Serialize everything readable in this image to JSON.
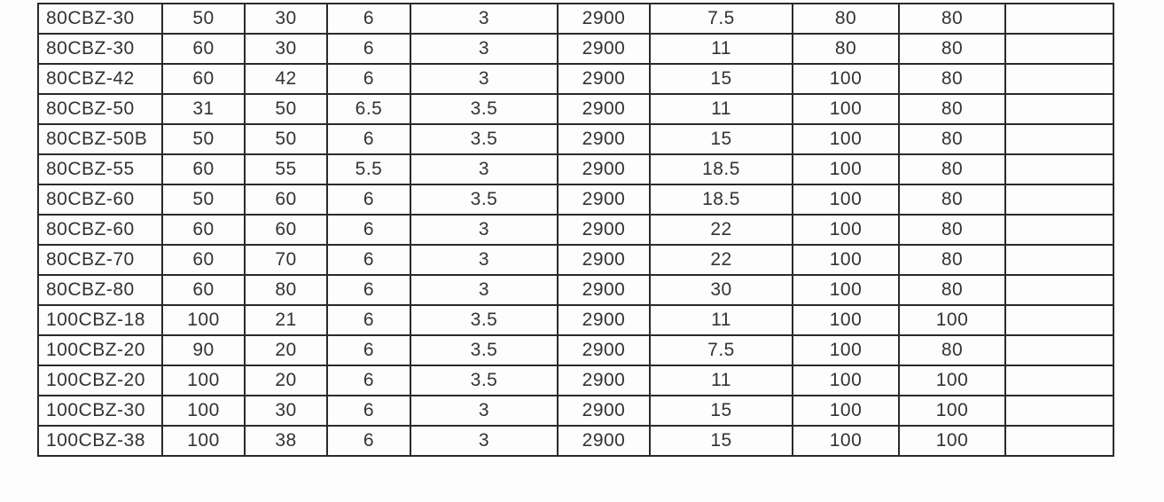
{
  "table": {
    "rows": [
      [
        "80CBZ-30",
        "50",
        "30",
        "6",
        "3",
        "2900",
        "7.5",
        "80",
        "80",
        ""
      ],
      [
        "80CBZ-30",
        "60",
        "30",
        "6",
        "3",
        "2900",
        "11",
        "80",
        "80",
        ""
      ],
      [
        "80CBZ-42",
        "60",
        "42",
        "6",
        "3",
        "2900",
        "15",
        "100",
        "80",
        ""
      ],
      [
        "80CBZ-50",
        "31",
        "50",
        "6.5",
        "3.5",
        "2900",
        "11",
        "100",
        "80",
        ""
      ],
      [
        "80CBZ-50B",
        "50",
        "50",
        "6",
        "3.5",
        "2900",
        "15",
        "100",
        "80",
        ""
      ],
      [
        "80CBZ-55",
        "60",
        "55",
        "5.5",
        "3",
        "2900",
        "18.5",
        "100",
        "80",
        ""
      ],
      [
        "80CBZ-60",
        "50",
        "60",
        "6",
        "3.5",
        "2900",
        "18.5",
        "100",
        "80",
        ""
      ],
      [
        "80CBZ-60",
        "60",
        "60",
        "6",
        "3",
        "2900",
        "22",
        "100",
        "80",
        ""
      ],
      [
        "80CBZ-70",
        "60",
        "70",
        "6",
        "3",
        "2900",
        "22",
        "100",
        "80",
        ""
      ],
      [
        "80CBZ-80",
        "60",
        "80",
        "6",
        "3",
        "2900",
        "30",
        "100",
        "80",
        ""
      ],
      [
        "100CBZ-18",
        "100",
        "21",
        "6",
        "3.5",
        "2900",
        "11",
        "100",
        "100",
        ""
      ],
      [
        "100CBZ-20",
        "90",
        "20",
        "6",
        "3.5",
        "2900",
        "7.5",
        "100",
        "80",
        ""
      ],
      [
        "100CBZ-20",
        "100",
        "20",
        "6",
        "3.5",
        "2900",
        "11",
        "100",
        "100",
        ""
      ],
      [
        "100CBZ-30",
        "100",
        "30",
        "6",
        "3",
        "2900",
        "15",
        "100",
        "100",
        ""
      ],
      [
        "100CBZ-38",
        "100",
        "38",
        "6",
        "3",
        "2900",
        "15",
        "100",
        "100",
        ""
      ]
    ]
  }
}
